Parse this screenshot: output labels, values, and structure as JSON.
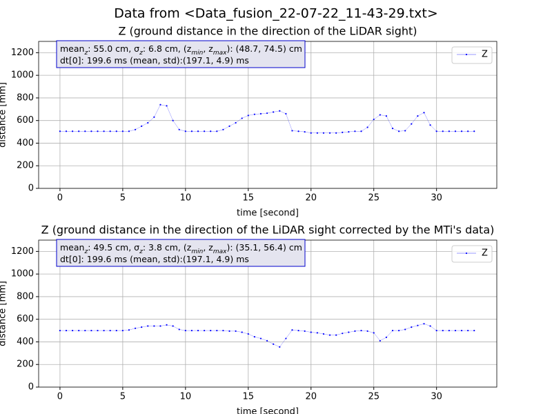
{
  "title": "Data from <Data_fusion_22-07-22_11-43-29.txt>",
  "chart_data": [
    {
      "type": "line",
      "title": "Z (ground distance in the direction of the LiDAR sight)",
      "x_label": "time [second]",
      "y_label": "distance [mm]",
      "annotation_lines": [
        [
          "mean",
          "z",
          ": 55.0 cm, σ",
          "z",
          ": 6.8 cm, (z",
          "min",
          ", z",
          "max",
          "): (48.7, 74.5) cm"
        ],
        [
          "dt[0]: 199.6 ms (mean, std):(197.1, 4.9) ms"
        ]
      ],
      "x": [
        0,
        0.5,
        1,
        1.5,
        2,
        2.5,
        3,
        3.5,
        4,
        4.5,
        5,
        5.5,
        6,
        6.5,
        7,
        7.5,
        8,
        8.5,
        9,
        9.5,
        10,
        10.5,
        11,
        11.5,
        12,
        12.5,
        13,
        13.5,
        14,
        14.5,
        15,
        15.5,
        16,
        16.5,
        17,
        17.5,
        18,
        18.5,
        19,
        19.5,
        20,
        20.5,
        21,
        21.5,
        22,
        22.5,
        23,
        23.5,
        24,
        24.5,
        25,
        25.5,
        26,
        26.5,
        27,
        27.5,
        28,
        28.5,
        29,
        29.5,
        30,
        30.5,
        31,
        31.5,
        32,
        32.5,
        33
      ],
      "series": [
        {
          "name": "Z",
          "color": "#0000ff",
          "values": [
            505,
            505,
            505,
            505,
            505,
            505,
            505,
            505,
            505,
            505,
            505,
            505,
            520,
            550,
            580,
            630,
            740,
            730,
            600,
            520,
            505,
            505,
            505,
            505,
            505,
            505,
            520,
            550,
            580,
            620,
            645,
            655,
            660,
            665,
            675,
            685,
            660,
            510,
            505,
            500,
            490,
            490,
            490,
            490,
            490,
            495,
            500,
            505,
            505,
            540,
            610,
            650,
            640,
            530,
            505,
            510,
            570,
            640,
            670,
            560,
            505,
            505,
            505,
            505,
            505,
            505,
            505
          ]
        }
      ],
      "xlim": [
        -1.7,
        34.8
      ],
      "ylim": [
        0,
        1300
      ],
      "xticks": [
        0,
        5,
        10,
        15,
        20,
        25,
        30
      ],
      "yticks": [
        0,
        200,
        400,
        600,
        800,
        1000,
        1200
      ],
      "grid": true,
      "legend": "upper-right"
    },
    {
      "type": "line",
      "title": "Z (ground distance in the direction of the LiDAR sight corrected by the MTi's data)",
      "x_label": "time [second]",
      "y_label": "distance [mm]",
      "annotation_lines": [
        [
          "mean",
          "z",
          ": 49.5 cm, σ",
          "z",
          ": 3.8 cm, (z",
          "min",
          ", z",
          "max",
          "): (35.1, 56.4) cm"
        ],
        [
          "dt[0]: 199.6 ms (mean, std):(197.1, 4.9) ms"
        ]
      ],
      "x": [
        0,
        0.5,
        1,
        1.5,
        2,
        2.5,
        3,
        3.5,
        4,
        4.5,
        5,
        5.5,
        6,
        6.5,
        7,
        7.5,
        8,
        8.5,
        9,
        9.5,
        10,
        10.5,
        11,
        11.5,
        12,
        12.5,
        13,
        13.5,
        14,
        14.5,
        15,
        15.5,
        16,
        16.5,
        17,
        17.5,
        18,
        18.5,
        19,
        19.5,
        20,
        20.5,
        21,
        21.5,
        22,
        22.5,
        23,
        23.5,
        24,
        24.5,
        25,
        25.5,
        26,
        26.5,
        27,
        27.5,
        28,
        28.5,
        29,
        29.5,
        30,
        30.5,
        31,
        31.5,
        32,
        32.5,
        33
      ],
      "series": [
        {
          "name": "Z",
          "color": "#0000ff",
          "values": [
            500,
            500,
            500,
            500,
            500,
            500,
            500,
            500,
            500,
            500,
            500,
            505,
            520,
            530,
            540,
            540,
            540,
            550,
            540,
            510,
            500,
            500,
            500,
            500,
            500,
            500,
            500,
            495,
            495,
            485,
            470,
            445,
            430,
            410,
            380,
            355,
            430,
            505,
            500,
            495,
            485,
            480,
            470,
            460,
            460,
            475,
            485,
            495,
            500,
            495,
            480,
            410,
            440,
            500,
            500,
            510,
            530,
            545,
            560,
            540,
            500,
            500,
            500,
            500,
            500,
            500,
            500
          ]
        }
      ],
      "xlim": [
        -1.7,
        34.8
      ],
      "ylim": [
        0,
        1300
      ],
      "xticks": [
        0,
        5,
        10,
        15,
        20,
        25,
        30
      ],
      "yticks": [
        0,
        200,
        400,
        600,
        800,
        1000,
        1200
      ],
      "grid": true,
      "legend": "upper-right"
    }
  ]
}
